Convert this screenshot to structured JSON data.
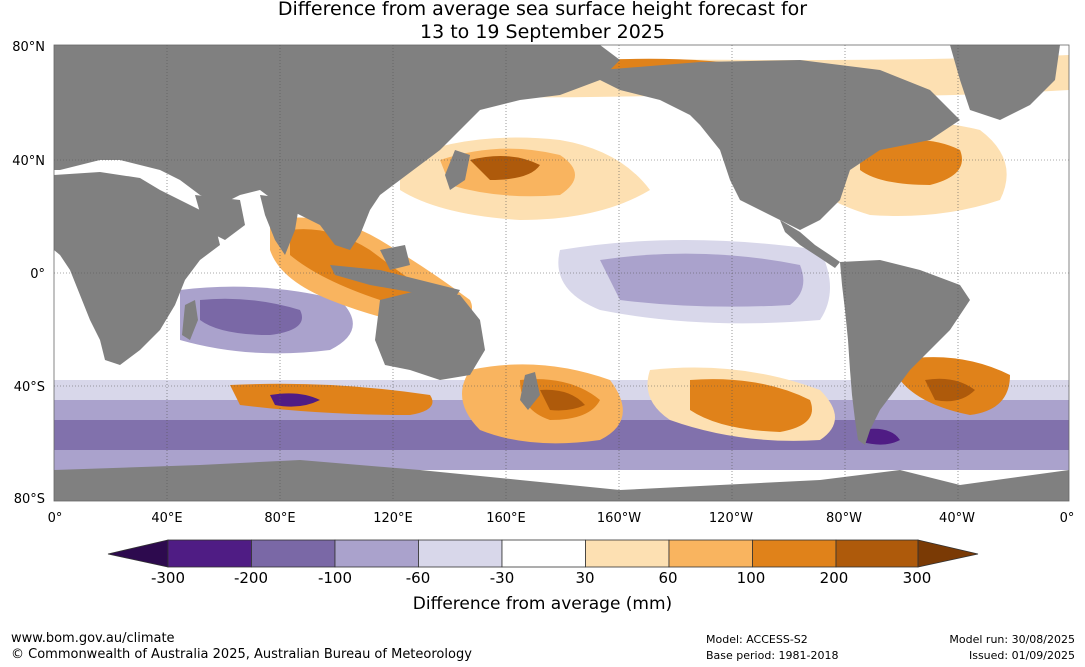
{
  "title": {
    "line1": "Difference from average sea surface height forecast for",
    "line2": "13 to 19 September 2025"
  },
  "map": {
    "lat_labels": [
      "80°N",
      "40°N",
      "0°",
      "40°S",
      "80°S"
    ],
    "lon_labels": [
      "0°",
      "40°E",
      "80°E",
      "120°E",
      "160°E",
      "160°W",
      "120°W",
      "80°W",
      "40°W",
      "0°"
    ],
    "land_color": "#808080",
    "ocean_neutral_color": "#ffffff",
    "grid": "dotted"
  },
  "legend": {
    "title": "Difference from average (mm)",
    "tick_labels": [
      "-300",
      "-200",
      "-100",
      "-60",
      "-30",
      "30",
      "60",
      "100",
      "200",
      "300"
    ],
    "colors": {
      "below_min": "#2d0a4e",
      "bins": [
        "#4f1c84",
        "#7a68a6",
        "#aaa2cc",
        "#d8d7ea",
        "#ffffff",
        "#fde0b2",
        "#f9b45f",
        "#e0821a",
        "#ae5a0b"
      ],
      "above_max": "#7a3a05"
    }
  },
  "footer": {
    "url": "www.bom.gov.au/climate",
    "copyright": "© Commonwealth of Australia 2025, Australian Bureau of Meteorology",
    "model": "Model: ACCESS-S2",
    "base_period": "Base period: 1981-2018",
    "model_run": "Model run: 30/08/2025",
    "issued": "Issued: 01/09/2025"
  }
}
